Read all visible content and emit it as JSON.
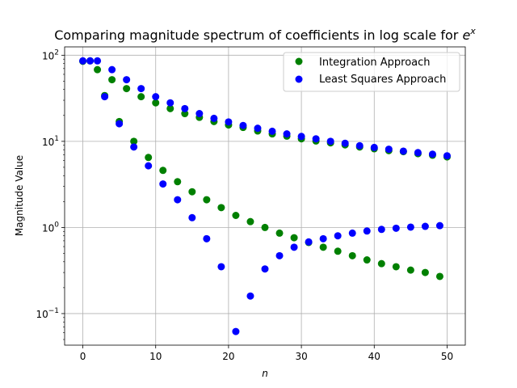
{
  "chart_data": {
    "type": "scatter",
    "title": "Comparing magnitude spectrum of coefficients in log scale for",
    "title_math": "e",
    "title_math_sup": "x",
    "xlabel": "n",
    "ylabel": "Magnitude Value",
    "xlim": [
      -2.5,
      52.5
    ],
    "ylim": [
      0.043,
      125
    ],
    "yscale": "log",
    "grid": true,
    "legend_position": "top-right",
    "x_ticks": [
      0,
      10,
      20,
      30,
      40,
      50
    ],
    "y_ticks": [
      {
        "value": 0.1,
        "base": "10",
        "exp": "−1"
      },
      {
        "value": 1,
        "base": "10",
        "exp": "0"
      },
      {
        "value": 10,
        "base": "10",
        "exp": "1"
      },
      {
        "value": 100,
        "base": "10",
        "exp": "2"
      }
    ],
    "series": [
      {
        "name": "Integration Approach",
        "color": "#008000",
        "x": [
          0,
          1,
          2,
          3,
          4,
          5,
          6,
          7,
          8,
          9,
          10,
          11,
          12,
          13,
          14,
          15,
          16,
          17,
          18,
          19,
          20,
          21,
          22,
          23,
          24,
          25,
          26,
          27,
          28,
          29,
          30,
          31,
          32,
          33,
          34,
          35,
          36,
          37,
          38,
          39,
          40,
          41,
          42,
          43,
          44,
          45,
          46,
          47,
          48,
          49,
          50
        ],
        "y": [
          85,
          86,
          68,
          34,
          52,
          17,
          41,
          10,
          33,
          6.5,
          28,
          4.6,
          24,
          3.4,
          21,
          2.6,
          19,
          2.1,
          17,
          1.7,
          15.5,
          1.38,
          14.5,
          1.17,
          13.2,
          1.0,
          12.2,
          0.86,
          11.5,
          0.76,
          10.7,
          0.67,
          10.1,
          0.59,
          9.6,
          0.53,
          9.1,
          0.47,
          8.6,
          0.42,
          8.2,
          0.38,
          7.8,
          0.35,
          7.6,
          0.32,
          7.2,
          0.3,
          6.9,
          0.27,
          6.6
        ]
      },
      {
        "name": "Least Squares Approach",
        "color": "#0000ff",
        "x": [
          0,
          1,
          2,
          3,
          4,
          5,
          6,
          7,
          8,
          9,
          10,
          11,
          12,
          13,
          14,
          15,
          16,
          17,
          18,
          19,
          20,
          21,
          22,
          23,
          24,
          25,
          26,
          27,
          28,
          29,
          30,
          31,
          32,
          33,
          34,
          35,
          36,
          37,
          38,
          39,
          40,
          41,
          42,
          43,
          44,
          45,
          46,
          47,
          48,
          49,
          50
        ],
        "y": [
          86,
          86,
          86,
          33,
          68,
          16,
          52,
          8.6,
          41,
          5.2,
          33,
          3.2,
          28,
          2.1,
          24,
          1.3,
          21,
          0.74,
          18.5,
          0.35,
          16.8,
          0.062,
          15.3,
          0.16,
          14.2,
          0.33,
          13.1,
          0.47,
          12.2,
          0.59,
          11.4,
          0.68,
          10.7,
          0.74,
          10.0,
          0.8,
          9.5,
          0.86,
          8.9,
          0.91,
          8.5,
          0.95,
          8.1,
          0.98,
          7.7,
          1.01,
          7.4,
          1.03,
          7.1,
          1.05,
          6.8
        ]
      }
    ]
  }
}
